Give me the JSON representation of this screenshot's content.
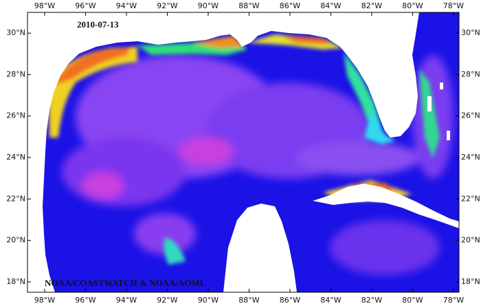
{
  "map": {
    "date": "2010-07-13",
    "credit": "NOAA/COASTWATCH & NOAA/AOML",
    "lon_range": [
      -98.84,
      -77.73
    ],
    "lat_range": [
      17.5,
      31.0
    ],
    "lon_ticks": [
      {
        "value": -98,
        "label": "98°W"
      },
      {
        "value": -96,
        "label": "96°W"
      },
      {
        "value": -94,
        "label": "94°W"
      },
      {
        "value": -92,
        "label": "92°W"
      },
      {
        "value": -90,
        "label": "90°W"
      },
      {
        "value": -88,
        "label": "88°W"
      },
      {
        "value": -86,
        "label": "86°W"
      },
      {
        "value": -84,
        "label": "84°W"
      },
      {
        "value": -82,
        "label": "82°W"
      },
      {
        "value": -80,
        "label": "80°W"
      },
      {
        "value": -78,
        "label": "78°W"
      }
    ],
    "lat_ticks": [
      {
        "value": 18,
        "label": "18°N"
      },
      {
        "value": 20,
        "label": "20°N"
      },
      {
        "value": 22,
        "label": "22°N"
      },
      {
        "value": 24,
        "label": "24°N"
      },
      {
        "value": 26,
        "label": "26°N"
      },
      {
        "value": 28,
        "label": "28°N"
      },
      {
        "value": 30,
        "label": "30°N"
      }
    ]
  }
}
